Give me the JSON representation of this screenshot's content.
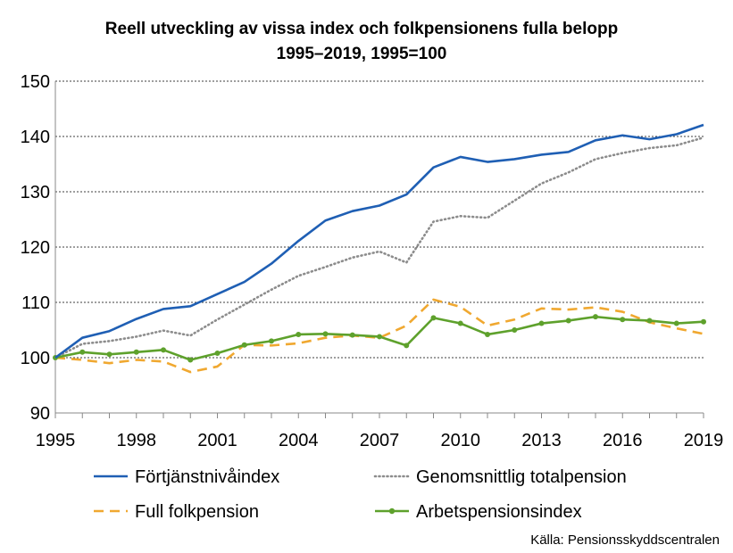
{
  "chart_data": {
    "type": "line",
    "title_line1": "Reell utveckling av vissa index och folkpensionens fulla belopp",
    "title_line2": "1995–2019, 1995=100",
    "x": [
      1995,
      1996,
      1997,
      1998,
      1999,
      2000,
      2001,
      2002,
      2003,
      2004,
      2005,
      2006,
      2007,
      2008,
      2009,
      2010,
      2011,
      2012,
      2013,
      2014,
      2015,
      2016,
      2017,
      2018,
      2019
    ],
    "x_ticks": [
      "1995",
      "1998",
      "2001",
      "2004",
      "2007",
      "2010",
      "2013",
      "2016",
      "2019"
    ],
    "y_ticks": [
      "90",
      "100",
      "110",
      "120",
      "130",
      "140",
      "150"
    ],
    "ylim": [
      90,
      150
    ],
    "grid": "horizontal-dashed",
    "legend_position": "bottom",
    "series": [
      {
        "name": "Förtjänstnivåindex",
        "color": "#1f5fb4",
        "style": "solid",
        "values": [
          100,
          103.6,
          104.8,
          107.0,
          108.8,
          109.3,
          111.5,
          113.7,
          117.0,
          121.1,
          124.8,
          126.5,
          127.5,
          129.5,
          134.4,
          136.3,
          135.4,
          135.9,
          136.7,
          137.2,
          139.3,
          140.2,
          139.5,
          140.4,
          142.1
        ]
      },
      {
        "name": "Genomsnittlig totalpension",
        "color": "#8c8c8c",
        "style": "dotted",
        "values": [
          100,
          102.5,
          103.0,
          103.8,
          104.9,
          104.0,
          106.9,
          109.6,
          112.3,
          114.8,
          116.4,
          118.1,
          119.2,
          117.2,
          124.6,
          125.6,
          125.3,
          128.4,
          131.5,
          133.5,
          135.9,
          137.0,
          137.9,
          138.4,
          139.8
        ]
      },
      {
        "name": "Full folkpension",
        "color": "#f0a830",
        "style": "dashed",
        "values": [
          100,
          99.6,
          99.0,
          99.6,
          99.3,
          97.4,
          98.4,
          102.3,
          102.2,
          102.6,
          103.6,
          104.0,
          103.6,
          105.8,
          110.5,
          109.2,
          105.8,
          106.9,
          108.9,
          108.7,
          109.1,
          108.3,
          106.4,
          105.3,
          104.3
        ]
      },
      {
        "name": "Arbetspensionsindex",
        "color": "#5ea12c",
        "style": "solid-markers",
        "values": [
          100,
          101.0,
          100.6,
          101.0,
          101.4,
          99.6,
          100.8,
          102.3,
          103.0,
          104.2,
          104.3,
          104.1,
          103.8,
          102.2,
          107.2,
          106.2,
          104.2,
          105.0,
          106.2,
          106.7,
          107.4,
          106.9,
          106.7,
          106.2,
          106.5
        ]
      }
    ]
  },
  "source": "Källa: Pensionsskyddscentralen"
}
